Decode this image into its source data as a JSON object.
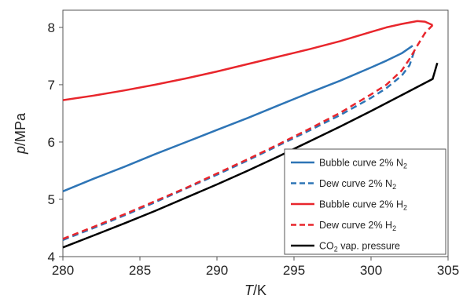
{
  "chart_data": {
    "type": "line",
    "xlabel_italic": "T",
    "xlabel_unit": "/K",
    "ylabel_italic": "p",
    "ylabel_unit": "/MPa",
    "xlim": [
      280,
      305
    ],
    "ylim": [
      4,
      8.3
    ],
    "x_ticks": [
      "280",
      "285",
      "290",
      "295",
      "300",
      "305"
    ],
    "y_ticks": [
      "4",
      "5",
      "6",
      "7",
      "8"
    ],
    "x_tick_values": [
      280,
      285,
      290,
      295,
      300,
      305
    ],
    "y_tick_values": [
      4,
      5,
      6,
      7,
      8
    ],
    "grid": false,
    "legend_position": "bottom-right",
    "series": [
      {
        "name": "Bubble curve 2% N2",
        "label_main": "Bubble curve 2% N",
        "label_sub": "2",
        "color": "#2E75B6",
        "dash": "solid",
        "points": [
          [
            280,
            5.14
          ],
          [
            282,
            5.36
          ],
          [
            284,
            5.57
          ],
          [
            286,
            5.79
          ],
          [
            288,
            6.0
          ],
          [
            290,
            6.21
          ],
          [
            292,
            6.42
          ],
          [
            294,
            6.64
          ],
          [
            296,
            6.86
          ],
          [
            298,
            7.07
          ],
          [
            300,
            7.3
          ],
          [
            301,
            7.42
          ],
          [
            302,
            7.55
          ],
          [
            302.7,
            7.68
          ]
        ]
      },
      {
        "name": "Dew curve 2% N2",
        "label_main": "Dew curve 2% N",
        "label_sub": "2",
        "color": "#2E75B6",
        "dash": "dashed",
        "points": [
          [
            280,
            4.29
          ],
          [
            282,
            4.5
          ],
          [
            284,
            4.72
          ],
          [
            286,
            4.95
          ],
          [
            288,
            5.19
          ],
          [
            290,
            5.43
          ],
          [
            292,
            5.68
          ],
          [
            294,
            5.94
          ],
          [
            296,
            6.2
          ],
          [
            298,
            6.47
          ],
          [
            300,
            6.77
          ],
          [
            301,
            6.94
          ],
          [
            302,
            7.16
          ],
          [
            302.5,
            7.34
          ],
          [
            302.8,
            7.58
          ]
        ]
      },
      {
        "name": "Bubble curve 2% H2",
        "label_main": "Bubble curve 2% H",
        "label_sub": "2",
        "color": "#E8262C",
        "dash": "solid",
        "points": [
          [
            280,
            6.73
          ],
          [
            282,
            6.81
          ],
          [
            284,
            6.9
          ],
          [
            286,
            7.0
          ],
          [
            288,
            7.11
          ],
          [
            290,
            7.23
          ],
          [
            292,
            7.36
          ],
          [
            294,
            7.49
          ],
          [
            296,
            7.62
          ],
          [
            298,
            7.76
          ],
          [
            300,
            7.92
          ],
          [
            301,
            8.0
          ],
          [
            302,
            8.06
          ],
          [
            303,
            8.11
          ],
          [
            303.5,
            8.1
          ],
          [
            304,
            8.04
          ]
        ]
      },
      {
        "name": "Dew curve 2% H2",
        "label_main": "Dew curve 2% H",
        "label_sub": "2",
        "color": "#E8262C",
        "dash": "dashed",
        "points": [
          [
            280,
            4.31
          ],
          [
            282,
            4.52
          ],
          [
            284,
            4.74
          ],
          [
            286,
            4.97
          ],
          [
            288,
            5.2
          ],
          [
            290,
            5.45
          ],
          [
            292,
            5.7
          ],
          [
            294,
            5.96
          ],
          [
            296,
            6.23
          ],
          [
            298,
            6.51
          ],
          [
            300,
            6.83
          ],
          [
            301,
            7.0
          ],
          [
            302,
            7.25
          ],
          [
            302.5,
            7.45
          ],
          [
            303,
            7.68
          ],
          [
            303.5,
            7.9
          ],
          [
            304,
            8.04
          ]
        ]
      },
      {
        "name": "CO2 vap. pressure",
        "label_pre": "CO",
        "label_sub": "2",
        "label_post": " vap. pressure",
        "color": "#000000",
        "dash": "solid",
        "points": [
          [
            280,
            4.16
          ],
          [
            282,
            4.37
          ],
          [
            284,
            4.58
          ],
          [
            286,
            4.8
          ],
          [
            288,
            5.03
          ],
          [
            290,
            5.26
          ],
          [
            292,
            5.5
          ],
          [
            294,
            5.75
          ],
          [
            296,
            6.01
          ],
          [
            298,
            6.27
          ],
          [
            300,
            6.54
          ],
          [
            302,
            6.82
          ],
          [
            304,
            7.1
          ],
          [
            304.3,
            7.38
          ]
        ]
      }
    ]
  }
}
